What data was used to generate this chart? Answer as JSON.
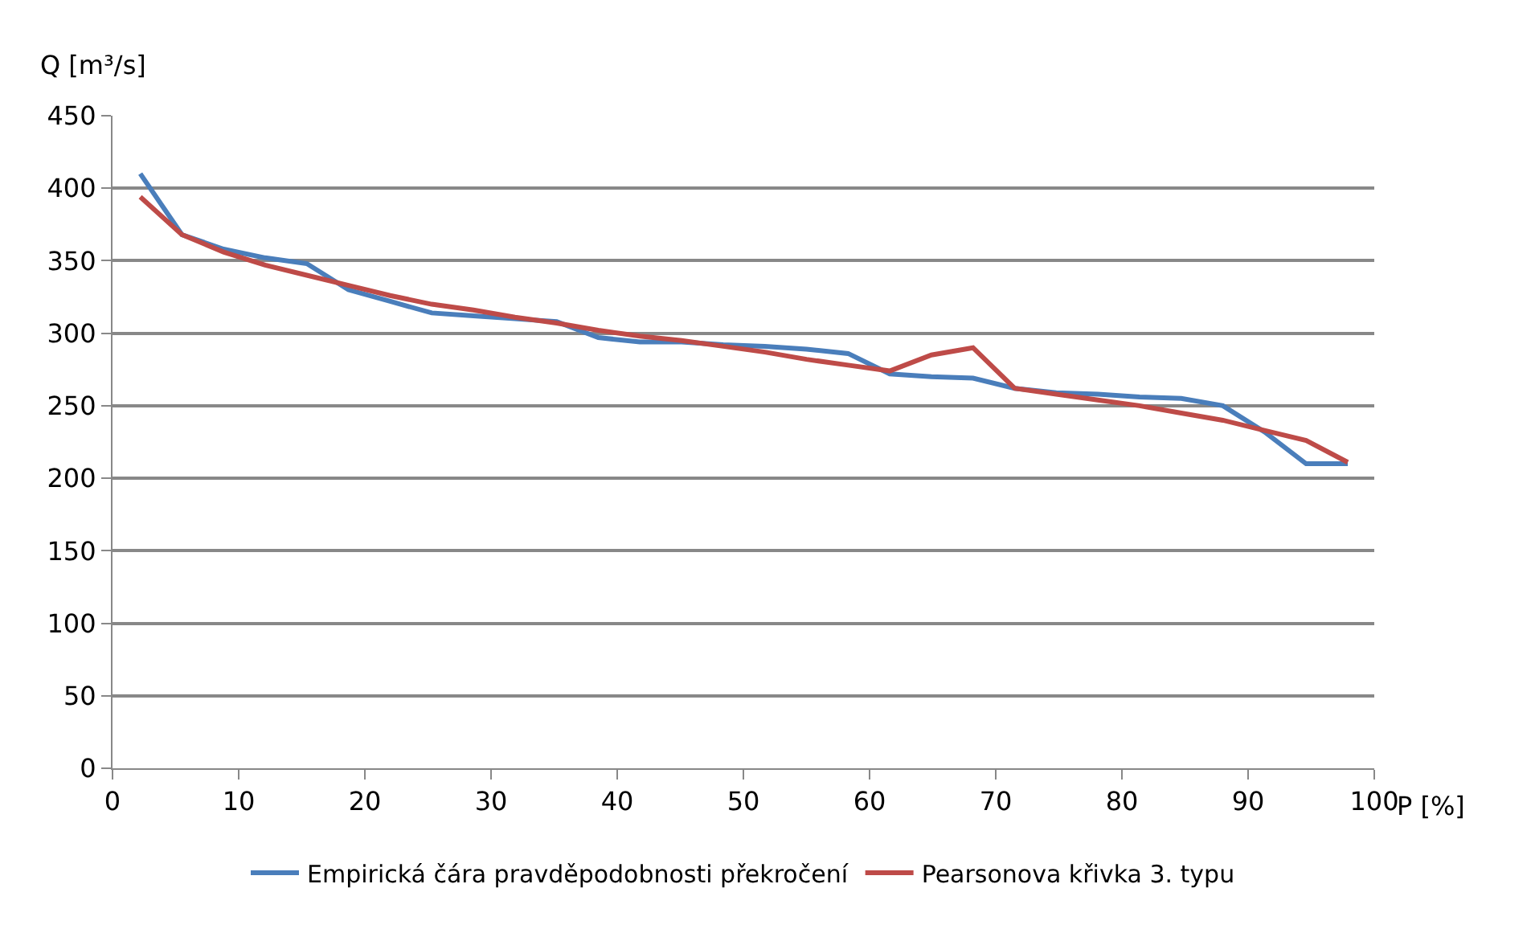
{
  "chart_data": {
    "type": "line",
    "xlabel": "P [%]",
    "ylabel": "Q [m³/s]",
    "x": [
      2.2,
      5.5,
      8.8,
      12.1,
      15.4,
      18.7,
      22.0,
      25.3,
      28.6,
      31.9,
      35.2,
      38.5,
      41.8,
      45.1,
      48.4,
      51.7,
      55.0,
      58.3,
      61.6,
      64.9,
      68.2,
      71.5,
      74.8,
      78.1,
      81.4,
      84.7,
      88.0,
      91.3,
      94.6,
      97.9
    ],
    "series": [
      {
        "name": "Empirická čára pravděpodobnosti překročení",
        "color": "#4a7ebb",
        "values": [
          410,
          368,
          358,
          352,
          348,
          330,
          322,
          314,
          312,
          310,
          308,
          297,
          294,
          294,
          292,
          291,
          289,
          286,
          272,
          270,
          269,
          262,
          259,
          258,
          256,
          255,
          250,
          232,
          210,
          210
        ]
      },
      {
        "name": "Pearsonova křivka 3. typu",
        "color": "#be4b48",
        "values": [
          394,
          368,
          356,
          347,
          340,
          333,
          326,
          320,
          316,
          311,
          307,
          302,
          298,
          295,
          291,
          287,
          282,
          278,
          274,
          285,
          290,
          262,
          258,
          254,
          250,
          245,
          240,
          233,
          226,
          211
        ]
      }
    ],
    "xlim": [
      0,
      100
    ],
    "xticks": [
      0,
      10,
      20,
      30,
      40,
      50,
      60,
      70,
      80,
      90,
      100
    ],
    "ylim": [
      0,
      450
    ],
    "yticks": [
      0,
      50,
      100,
      150,
      200,
      250,
      300,
      350,
      400,
      450
    ],
    "grid": "y",
    "legend": "bottom",
    "marker": "none",
    "line_style": "solid"
  }
}
